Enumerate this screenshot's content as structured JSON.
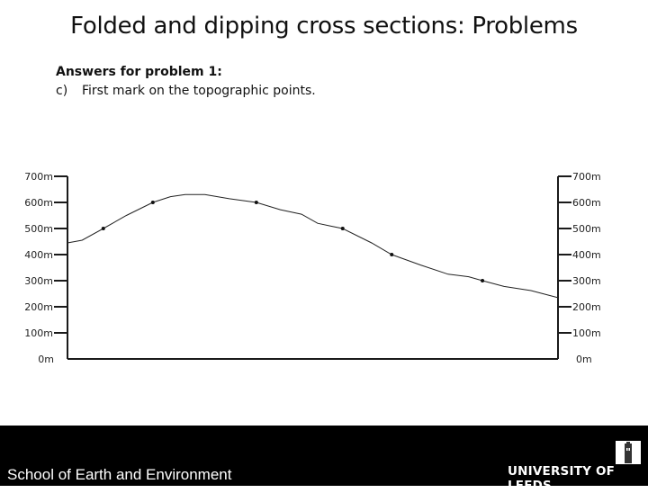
{
  "title": "Folded and dipping cross sections: Problems",
  "subtitle": "Answers for problem 1:",
  "instruction": {
    "label": "c)",
    "text": "First mark on the topographic points."
  },
  "chart_data": {
    "type": "line",
    "title": "",
    "xlabel": "",
    "ylabel": "",
    "ylim": [
      0,
      700
    ],
    "xlim": [
      0,
      100
    ],
    "grid": false,
    "y_ticks": [
      "0m",
      "100m",
      "200m",
      "300m",
      "400m",
      "500m",
      "600m",
      "700m"
    ],
    "y_tick_values": [
      0,
      100,
      200,
      300,
      400,
      500,
      600,
      700
    ],
    "profile": {
      "x": [
        0,
        3,
        7.3,
        12,
        17.4,
        21,
        24,
        28,
        33,
        38.5,
        43.4,
        47.7,
        51,
        53.5,
        56.1,
        62,
        66.1,
        72,
        77.6,
        81.8,
        84.6,
        89,
        94.5,
        100
      ],
      "y": [
        445,
        455,
        500,
        550,
        600,
        622,
        630,
        630,
        614,
        600,
        572,
        555,
        520,
        510,
        500,
        445,
        400,
        360,
        325,
        315,
        300,
        278,
        262,
        235
      ]
    },
    "marked_points": {
      "x": [
        7.3,
        17.4,
        38.5,
        56.1,
        66.1,
        84.6
      ],
      "y": [
        500,
        600,
        600,
        500,
        400,
        300
      ]
    },
    "colors": {
      "line": "#222222",
      "axis": "#1a1a1a"
    }
  },
  "footer": {
    "text": "School of Earth and Environment",
    "logo_text": "UNIVERSITY OF LEEDS"
  }
}
